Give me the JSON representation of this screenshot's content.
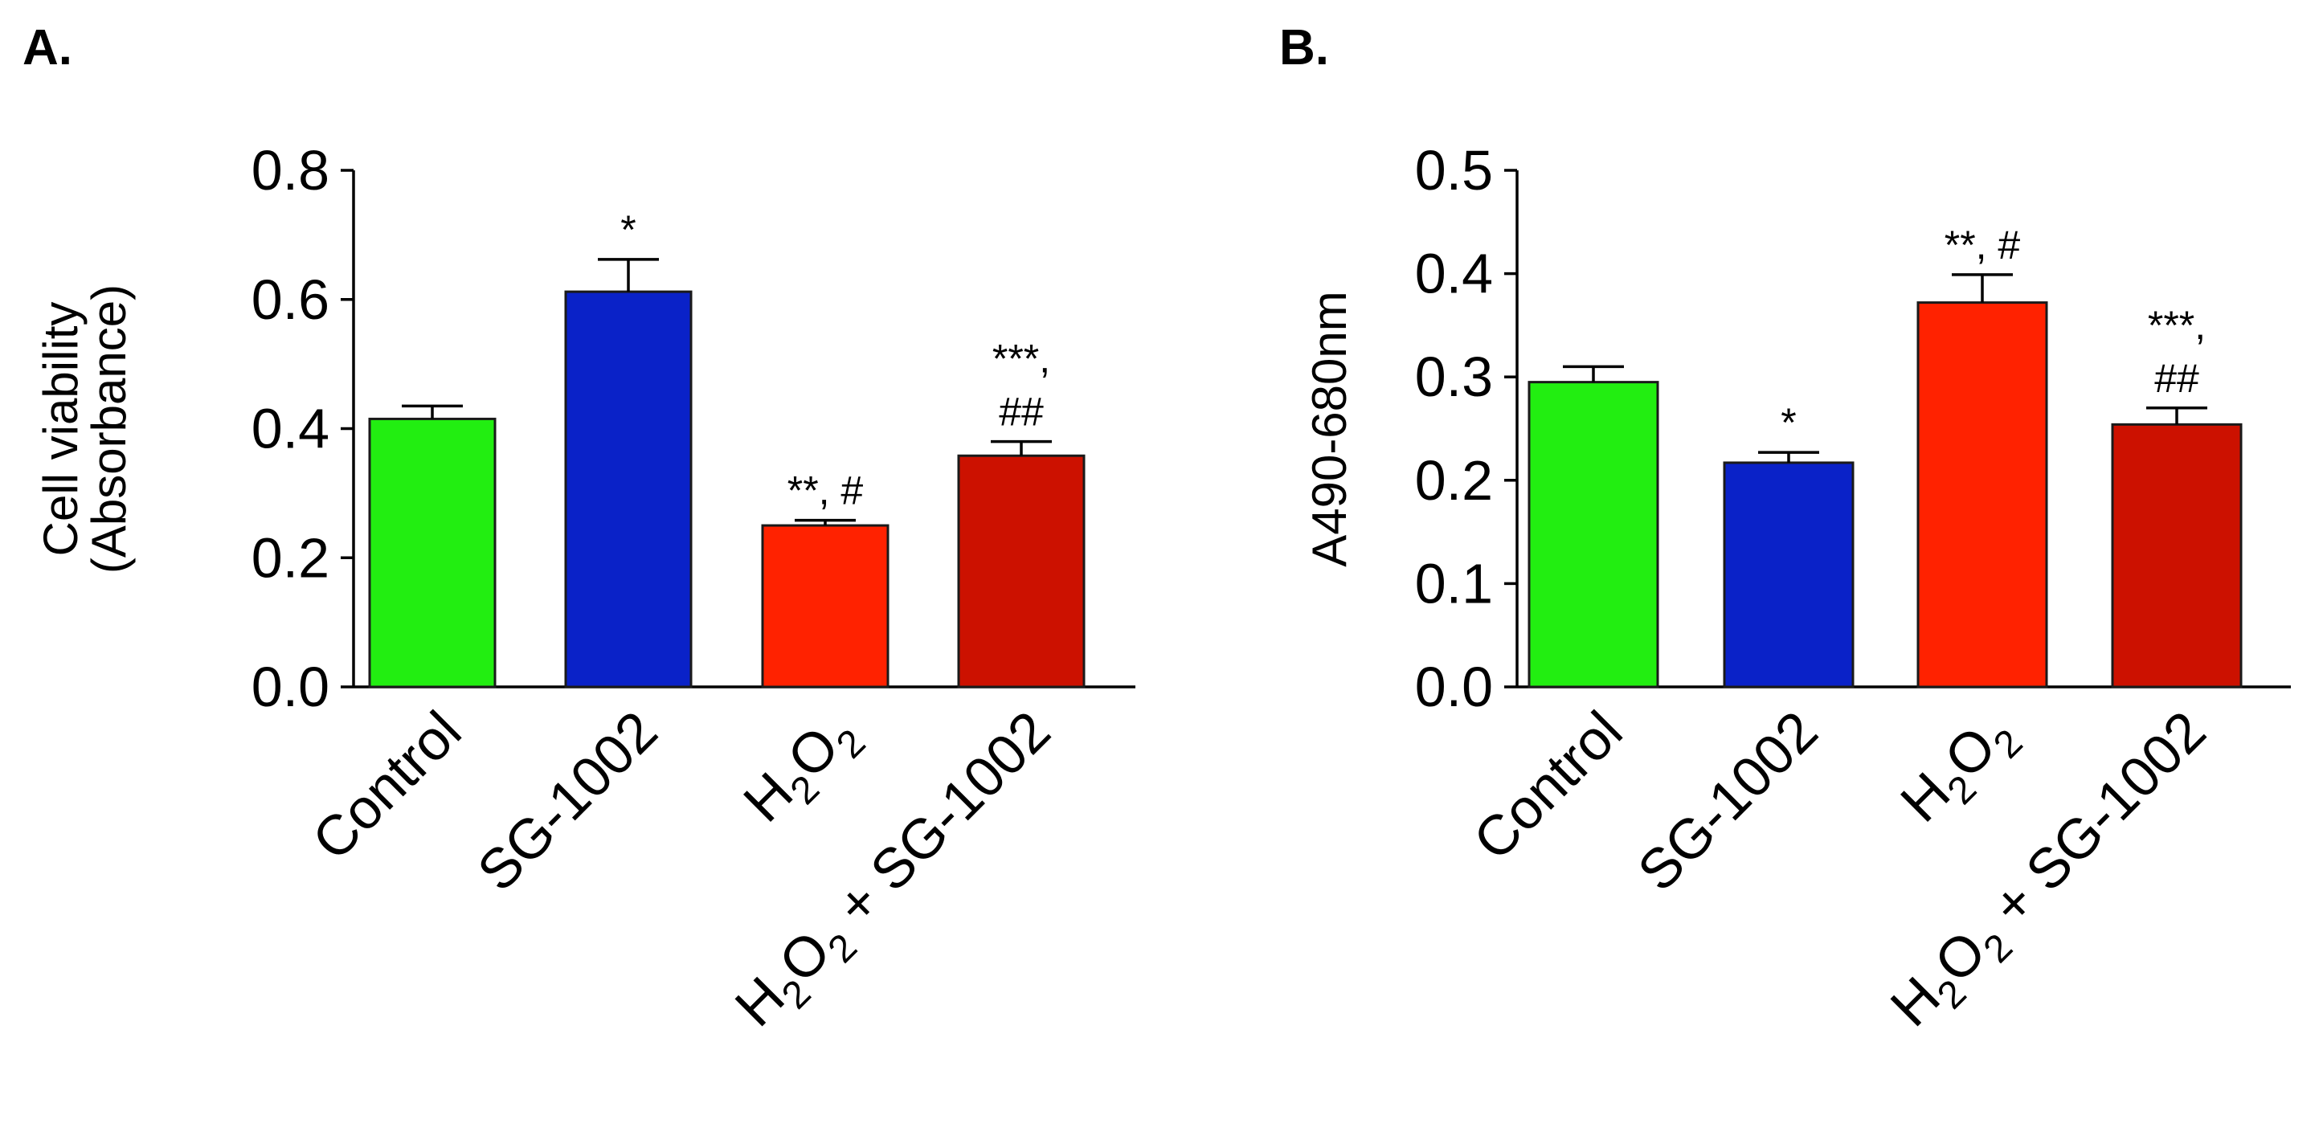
{
  "colors": {
    "control": "#22ee11",
    "sg1002": "#0a22c8",
    "h2o2": "#ff2200",
    "h2o2_sg1002": "#cc1100",
    "axis": "#000000"
  },
  "chart_data": [
    {
      "type": "bar",
      "panel_label": "A.",
      "title": "",
      "ylabel_lines": [
        "Cell viability",
        "(Absorbance)"
      ],
      "xlabel": "",
      "ylim": [
        0,
        0.8
      ],
      "yticks": [
        "0.0",
        "0.2",
        "0.4",
        "0.6",
        "0.8"
      ],
      "ytick_values": [
        0.0,
        0.2,
        0.4,
        0.6,
        0.8
      ],
      "categories": [
        {
          "base": "Control"
        },
        {
          "base": "SG-1002"
        },
        {
          "base": "H",
          "sub1": "2",
          "mid": "O",
          "sub2": "2"
        },
        {
          "base": "H",
          "sub1": "2",
          "mid": "O",
          "sub2": "2",
          "rest": " + SG-1002"
        }
      ],
      "values": [
        0.415,
        0.612,
        0.25,
        0.358
      ],
      "errors": [
        0.02,
        0.05,
        0.008,
        0.022
      ],
      "bar_colors": [
        "#22ee11",
        "#0a22c8",
        "#ff2200",
        "#cc1100"
      ],
      "annotations": [
        {
          "lines": []
        },
        {
          "lines": [
            "*"
          ]
        },
        {
          "lines": [
            "**, #"
          ]
        },
        {
          "lines": [
            "***,",
            "##"
          ]
        }
      ]
    },
    {
      "type": "bar",
      "panel_label": "B.",
      "title": "",
      "ylabel_lines": [
        "A490-680nm"
      ],
      "xlabel": "",
      "ylim": [
        0,
        0.5
      ],
      "yticks": [
        "0.0",
        "0.1",
        "0.2",
        "0.3",
        "0.4",
        "0.5"
      ],
      "ytick_values": [
        0.0,
        0.1,
        0.2,
        0.3,
        0.4,
        0.5
      ],
      "categories": [
        {
          "base": "Control"
        },
        {
          "base": "SG-1002"
        },
        {
          "base": "H",
          "sub1": "2",
          "mid": "O",
          "sub2": "2"
        },
        {
          "base": "H",
          "sub1": "2",
          "mid": "O",
          "sub2": "2",
          "rest": " + SG-1002"
        }
      ],
      "values": [
        0.295,
        0.217,
        0.372,
        0.254
      ],
      "errors": [
        0.015,
        0.01,
        0.027,
        0.016
      ],
      "bar_colors": [
        "#22ee11",
        "#0a22c8",
        "#ff2200",
        "#cc1100"
      ],
      "annotations": [
        {
          "lines": []
        },
        {
          "lines": [
            "*"
          ]
        },
        {
          "lines": [
            "**, #"
          ]
        },
        {
          "lines": [
            "***,",
            "##"
          ]
        }
      ]
    }
  ]
}
